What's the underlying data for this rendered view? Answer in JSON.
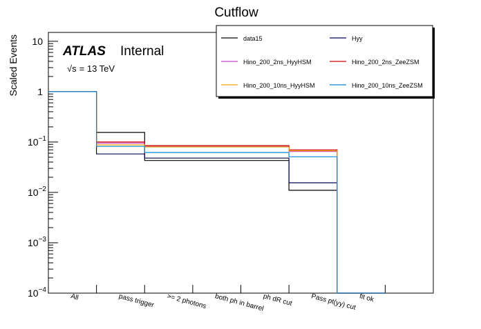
{
  "chart_data": {
    "type": "line",
    "title": "Cutflow",
    "ylabel": "Scaled Events",
    "xlabel": "",
    "yscale": "log",
    "ylim": [
      0.0001,
      15
    ],
    "categories": [
      "All",
      "pass trigger",
      ">= 2 photons",
      "both ph in barrel",
      "ph dR cut",
      "Pass pt(yy) cut",
      "fit ok"
    ],
    "y_ticks": [
      {
        "value": 0.0001,
        "base": "10",
        "exp": "−4"
      },
      {
        "value": 0.001,
        "base": "10",
        "exp": "−3"
      },
      {
        "value": 0.01,
        "base": "10",
        "exp": "−2"
      },
      {
        "value": 0.1,
        "base": "10",
        "exp": "−1"
      },
      {
        "value": 1,
        "base": "1",
        "exp": ""
      },
      {
        "value": 10,
        "base": "10",
        "exp": ""
      }
    ],
    "series": [
      {
        "name": "data15",
        "color": "#000000",
        "values": [
          1,
          0.155,
          0.043,
          0.043,
          0.043,
          0.011,
          0.0001
        ]
      },
      {
        "name": "Hyy",
        "color": "#000055",
        "values": [
          1,
          0.058,
          0.048,
          0.048,
          0.048,
          0.0155,
          0.0001
        ]
      },
      {
        "name": "Hino_200_2ns_HyyHSM",
        "color": "#cc44cc",
        "values": [
          1,
          0.095,
          0.082,
          0.082,
          0.082,
          0.065,
          0.0001
        ]
      },
      {
        "name": "Hino_200_2ns_ZeeZSM",
        "color": "#cc0000",
        "values": [
          1,
          0.1,
          0.085,
          0.085,
          0.085,
          0.07,
          0.0001
        ]
      },
      {
        "name": "Hino_200_10ns_HyyHSM",
        "color": "#f0a000",
        "values": [
          1,
          0.088,
          0.08,
          0.08,
          0.08,
          0.067,
          0.0001
        ]
      },
      {
        "name": "Hino_200_10ns_ZeeZSM",
        "color": "#0a88d8",
        "values": [
          1,
          0.082,
          0.062,
          0.062,
          0.062,
          0.051,
          0.0001
        ]
      }
    ],
    "legend_position": "top-right",
    "grid": false
  },
  "labels": {
    "atlas": "ATLAS",
    "internal": "Internal",
    "energy_sqrt": "√s",
    "energy_rest": "= 13 TeV"
  }
}
